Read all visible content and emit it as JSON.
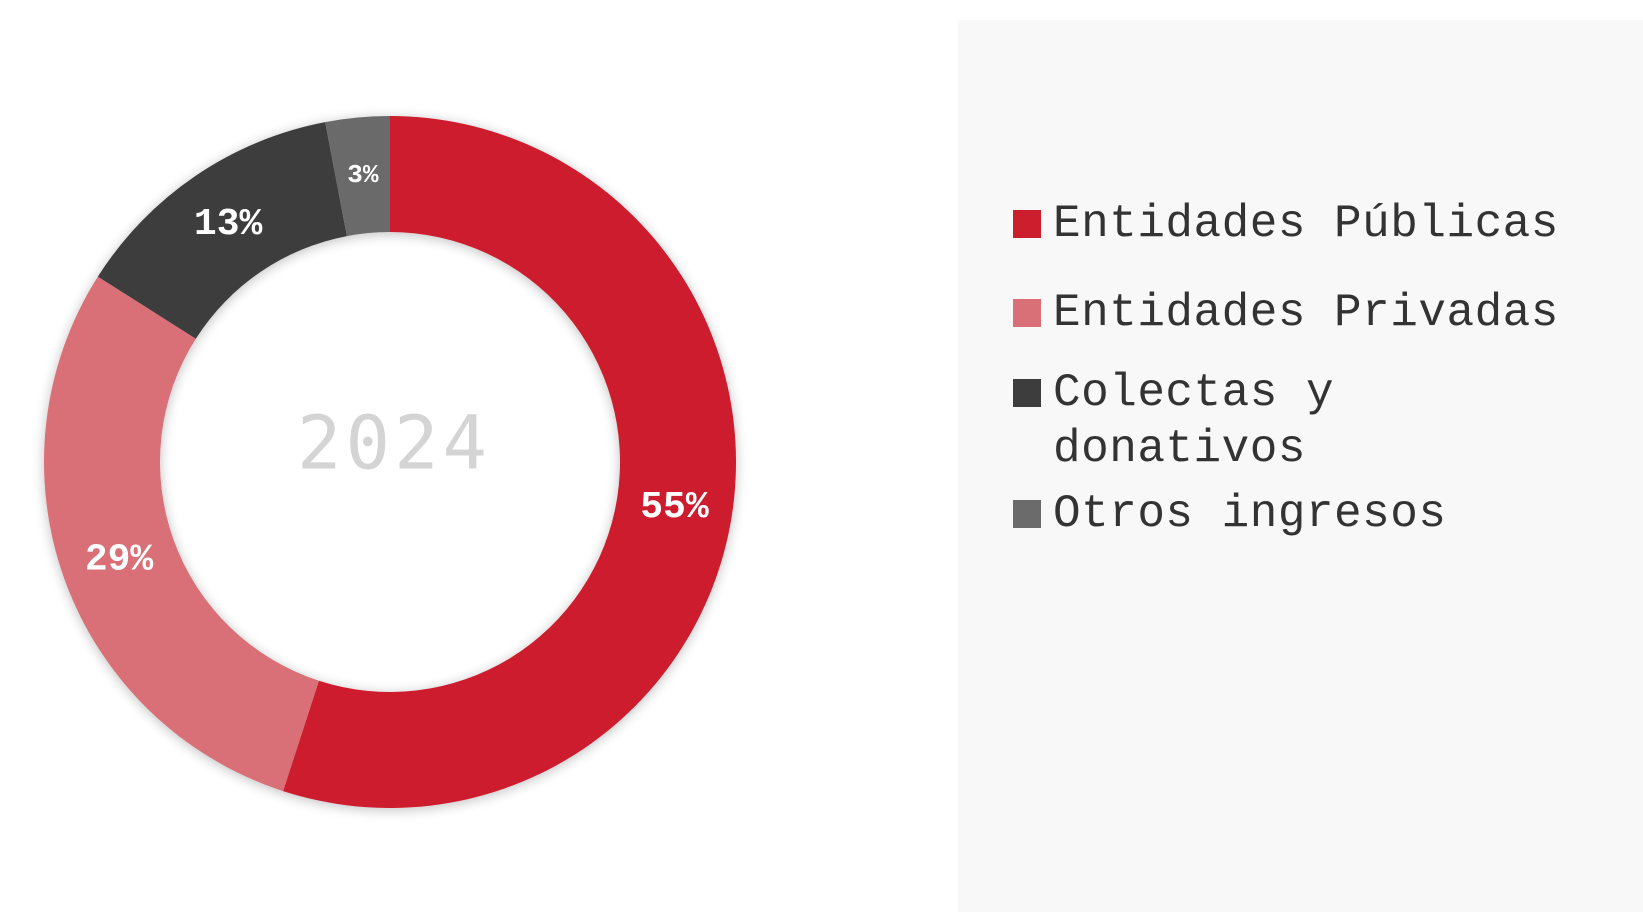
{
  "chart_data": {
    "type": "pie",
    "variant": "donut",
    "center_text": "2024",
    "categories": [
      "Entidades Públicas",
      "Entidades Privadas",
      "Colectas y donativos",
      "Otros ingresos"
    ],
    "values": [
      55,
      29,
      13,
      3
    ],
    "value_labels": [
      "55%",
      "29%",
      "13%",
      "3%"
    ],
    "colors": [
      "#cc1f2d",
      "#d97077",
      "#3d3d3d",
      "#6b6b6b"
    ],
    "legend_position": "right",
    "start_angle": "top, clockwise"
  },
  "legend": {
    "items": [
      {
        "label": "Entidades Públicas",
        "color": "#cc1f2d"
      },
      {
        "label": "Entidades Privadas",
        "color": "#d97077"
      },
      {
        "label": "Colectas y\ndonativos",
        "color": "#3d3d3d"
      },
      {
        "label": "Otros ingresos",
        "color": "#6b6b6b"
      }
    ]
  }
}
